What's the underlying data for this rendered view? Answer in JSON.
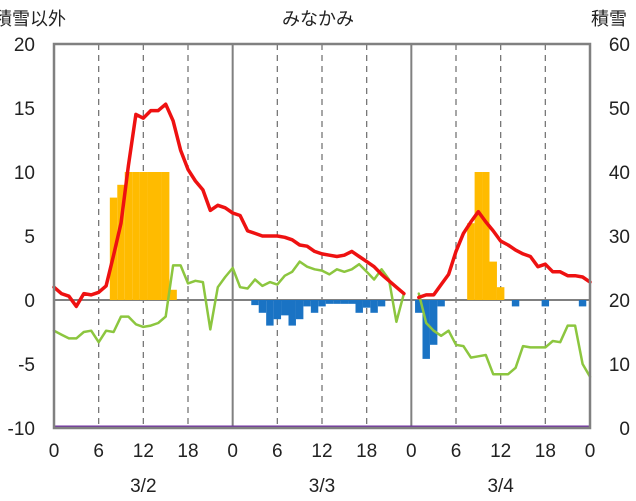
{
  "chart_data": {
    "type": "bar+line",
    "title": "みなかみ",
    "left_axis_label": "積雪以外",
    "right_axis_label": "積雪",
    "left_ylim": [
      -10,
      20
    ],
    "left_yticks": [
      "20",
      "15",
      "10",
      "5",
      "0",
      "-5",
      "-10"
    ],
    "right_ylim": [
      0,
      60
    ],
    "right_yticks": [
      "60",
      "50",
      "40",
      "30",
      "20",
      "10",
      "0"
    ],
    "xlim": [
      0,
      72
    ],
    "x_tick_labels": [
      "0",
      "6",
      "12",
      "18",
      "0",
      "6",
      "12",
      "18",
      "0",
      "6",
      "12",
      "18",
      "0"
    ],
    "day_labels": [
      "3/2",
      "3/3",
      "3/4"
    ],
    "grid": "dashed vertical at 6-hour marks, solid vertical at day boundaries, solid horizontal at 0",
    "colors": {
      "temperature": "#ee1111",
      "dewpoint": "#8cc63f",
      "snowfall_pos": "#ffbb00",
      "snowfall_neg": "#1a73c4",
      "baseline": "#7030a0",
      "frame": "#808080"
    },
    "snowfall_bars": [
      {
        "h": 8,
        "v": 8
      },
      {
        "h": 9,
        "v": 9
      },
      {
        "h": 10,
        "v": 10
      },
      {
        "h": 11,
        "v": 10
      },
      {
        "h": 12,
        "v": 10
      },
      {
        "h": 13,
        "v": 10
      },
      {
        "h": 14,
        "v": 10
      },
      {
        "h": 15,
        "v": 10
      },
      {
        "h": 16,
        "v": 0.8
      },
      {
        "h": 27,
        "v": -0.4
      },
      {
        "h": 28,
        "v": -1.0
      },
      {
        "h": 29,
        "v": -2.0
      },
      {
        "h": 30,
        "v": -1.5
      },
      {
        "h": 31,
        "v": -1.2
      },
      {
        "h": 32,
        "v": -2.0
      },
      {
        "h": 33,
        "v": -1.5
      },
      {
        "h": 34,
        "v": -0.5
      },
      {
        "h": 35,
        "v": -1.0
      },
      {
        "h": 36,
        "v": -0.5
      },
      {
        "h": 37,
        "v": -0.3
      },
      {
        "h": 38,
        "v": -0.3
      },
      {
        "h": 39,
        "v": -0.3
      },
      {
        "h": 40,
        "v": -0.3
      },
      {
        "h": 41,
        "v": -1.0
      },
      {
        "h": 42,
        "v": -0.6
      },
      {
        "h": 43,
        "v": -1.0
      },
      {
        "h": 44,
        "v": -0.5
      },
      {
        "h": 49,
        "v": -1.0
      },
      {
        "h": 50,
        "v": -4.6
      },
      {
        "h": 51,
        "v": -3.5
      },
      {
        "h": 52,
        "v": -0.5
      },
      {
        "h": 56,
        "v": 6
      },
      {
        "h": 57,
        "v": 10
      },
      {
        "h": 58,
        "v": 10
      },
      {
        "h": 59,
        "v": 3
      },
      {
        "h": 60,
        "v": 1
      },
      {
        "h": 62,
        "v": -0.5
      },
      {
        "h": 66,
        "v": -0.5
      },
      {
        "h": 71,
        "v": -0.5
      }
    ],
    "temperature": [
      [
        0,
        1.0
      ],
      [
        1,
        0.5
      ],
      [
        2,
        0.3
      ],
      [
        3,
        -0.5
      ],
      [
        4,
        0.5
      ],
      [
        5,
        0.4
      ],
      [
        6,
        0.6
      ],
      [
        7,
        1.1
      ],
      [
        8,
        3.5
      ],
      [
        9,
        6.0
      ],
      [
        10,
        10.5
      ],
      [
        11,
        14.5
      ],
      [
        12,
        14.2
      ],
      [
        13,
        14.8
      ],
      [
        14,
        14.8
      ],
      [
        15,
        15.3
      ],
      [
        16,
        14.0
      ],
      [
        17,
        11.7
      ],
      [
        18,
        10.2
      ],
      [
        19,
        9.3
      ],
      [
        20,
        8.6
      ],
      [
        21,
        7.0
      ],
      [
        22,
        7.4
      ],
      [
        23,
        7.2
      ],
      [
        24,
        6.8
      ],
      [
        25,
        6.6
      ],
      [
        26,
        5.4
      ],
      [
        27,
        5.2
      ],
      [
        28,
        5.0
      ],
      [
        29,
        5.0
      ],
      [
        30,
        5.0
      ],
      [
        31,
        4.9
      ],
      [
        32,
        4.7
      ],
      [
        33,
        4.3
      ],
      [
        34,
        4.2
      ],
      [
        35,
        3.8
      ],
      [
        36,
        3.6
      ],
      [
        37,
        3.5
      ],
      [
        38,
        3.4
      ],
      [
        39,
        3.5
      ],
      [
        40,
        3.8
      ],
      [
        41,
        3.4
      ],
      [
        42,
        3.0
      ],
      [
        43,
        2.6
      ],
      [
        44,
        2.0
      ],
      [
        45,
        1.5
      ],
      [
        46,
        1.0
      ],
      [
        47,
        0.5
      ],
      [
        48,
        null
      ],
      [
        49,
        0.2
      ],
      [
        50,
        0.4
      ],
      [
        51,
        0.4
      ],
      [
        52,
        1.2
      ],
      [
        53,
        2.0
      ],
      [
        54,
        3.8
      ],
      [
        55,
        5.2
      ],
      [
        56,
        6.1
      ],
      [
        57,
        6.9
      ],
      [
        58,
        6.1
      ],
      [
        59,
        5.4
      ],
      [
        60,
        4.6
      ],
      [
        61,
        4.3
      ],
      [
        62,
        3.9
      ],
      [
        63,
        3.6
      ],
      [
        64,
        3.4
      ],
      [
        65,
        2.6
      ],
      [
        66,
        2.8
      ],
      [
        67,
        2.2
      ],
      [
        68,
        2.2
      ],
      [
        69,
        1.9
      ],
      [
        70,
        1.9
      ],
      [
        71,
        1.8
      ],
      [
        72,
        1.4
      ]
    ],
    "dewpoint": [
      [
        0,
        -2.4
      ],
      [
        1,
        -2.7
      ],
      [
        2,
        -3.0
      ],
      [
        3,
        -3.0
      ],
      [
        4,
        -2.5
      ],
      [
        5,
        -2.4
      ],
      [
        6,
        -3.3
      ],
      [
        7,
        -2.4
      ],
      [
        8,
        -2.5
      ],
      [
        9,
        -1.3
      ],
      [
        10,
        -1.3
      ],
      [
        11,
        -1.9
      ],
      [
        12,
        -2.1
      ],
      [
        13,
        -2.0
      ],
      [
        14,
        -1.8
      ],
      [
        15,
        -1.3
      ],
      [
        16,
        2.7
      ],
      [
        17,
        2.7
      ],
      [
        18,
        1.3
      ],
      [
        19,
        1.5
      ],
      [
        20,
        1.4
      ],
      [
        21,
        -2.3
      ],
      [
        22,
        1.0
      ],
      [
        23,
        1.8
      ],
      [
        24,
        2.5
      ],
      [
        25,
        1.0
      ],
      [
        26,
        0.9
      ],
      [
        27,
        1.6
      ],
      [
        28,
        1.1
      ],
      [
        29,
        1.4
      ],
      [
        30,
        1.2
      ],
      [
        31,
        1.9
      ],
      [
        32,
        2.2
      ],
      [
        33,
        3.0
      ],
      [
        34,
        2.6
      ],
      [
        35,
        2.4
      ],
      [
        36,
        2.3
      ],
      [
        37,
        2.0
      ],
      [
        38,
        2.4
      ],
      [
        39,
        2.2
      ],
      [
        40,
        2.4
      ],
      [
        41,
        2.8
      ],
      [
        42,
        2.2
      ],
      [
        43,
        1.6
      ],
      [
        44,
        2.4
      ],
      [
        45,
        1.6
      ],
      [
        46,
        -1.7
      ],
      [
        47,
        0.5
      ],
      [
        48,
        null
      ],
      [
        49,
        0.5
      ],
      [
        50,
        -1.8
      ],
      [
        51,
        -2.4
      ],
      [
        52,
        -2.8
      ],
      [
        53,
        -2.4
      ],
      [
        54,
        -3.5
      ],
      [
        55,
        -3.6
      ],
      [
        56,
        -4.5
      ],
      [
        57,
        -4.4
      ],
      [
        58,
        -4.3
      ],
      [
        59,
        -5.8
      ],
      [
        60,
        -5.8
      ],
      [
        61,
        -5.8
      ],
      [
        62,
        -5.3
      ],
      [
        63,
        -3.6
      ],
      [
        64,
        -3.7
      ],
      [
        65,
        -3.7
      ],
      [
        66,
        -3.7
      ],
      [
        67,
        -3.2
      ],
      [
        68,
        -3.3
      ],
      [
        69,
        -2.0
      ],
      [
        70,
        -2.0
      ],
      [
        71,
        -5.0
      ],
      [
        72,
        -6.0
      ]
    ]
  }
}
